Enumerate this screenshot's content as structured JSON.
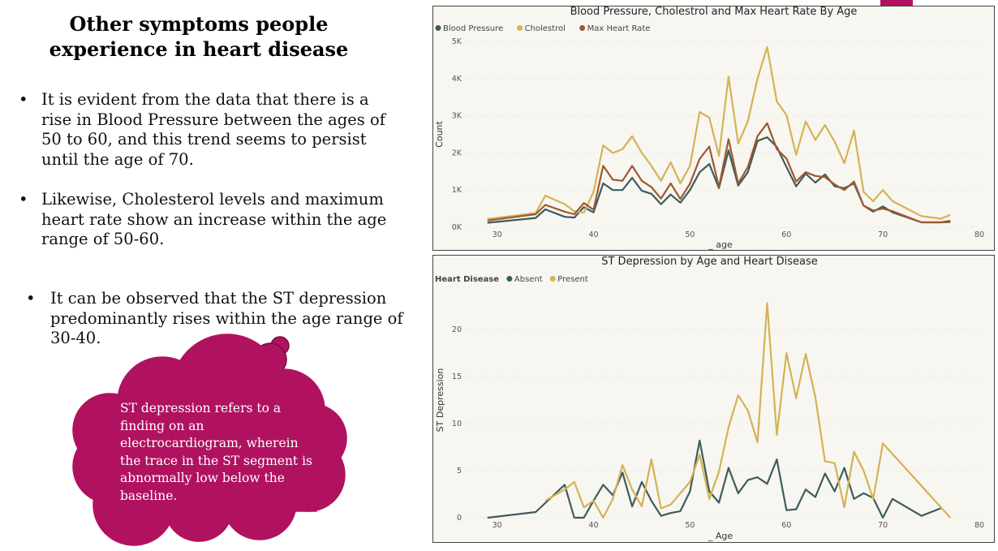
{
  "slide": {
    "title_line1": "Other symptoms people",
    "title_line2": "experience in heart disease",
    "bullet_char": "•",
    "bullets": [
      "It is evident from the data that there is a rise in Blood Pressure between the ages of 50 to 60, and this trend seems to persist until the age of 70.",
      "Likewise, Cholesterol levels and maximum heart rate show an increase within the age range of 50-60.",
      "It can be observed that the ST depression predominantly rises within the age range of 30-40."
    ],
    "callout": "ST depression refers to a finding on an electrocardiogram, wherein the trace in the ST segment is abnormally low below the baseline."
  },
  "colors": {
    "cloud_fill": "#b01260",
    "cloud_edge": "#7a0a42",
    "series_blue": "#3d5c5c",
    "series_gold": "#d4b254",
    "series_brown": "#a0582f",
    "chart_bg": "#f7f6f1"
  },
  "chart_data": [
    {
      "type": "line",
      "title": "Blood Pressure, Cholestrol and Max Heart Rate By Age",
      "xlabel": "_ age",
      "ylabel": "Count",
      "xlim": [
        27,
        80
      ],
      "ylim": [
        0,
        5000
      ],
      "xticks": [
        30,
        40,
        50,
        60,
        70,
        80
      ],
      "yticks": [
        0,
        1000,
        2000,
        3000,
        4000,
        5000
      ],
      "ytick_labels": [
        "0K",
        "1K",
        "2K",
        "3K",
        "4K",
        "5K"
      ],
      "legend_position": "top-left",
      "x": [
        29,
        34,
        35,
        37,
        38,
        39,
        40,
        41,
        42,
        43,
        44,
        45,
        46,
        47,
        48,
        49,
        50,
        51,
        52,
        53,
        54,
        55,
        56,
        57,
        58,
        59,
        60,
        61,
        62,
        63,
        64,
        65,
        66,
        67,
        68,
        69,
        70,
        71,
        74,
        76,
        77
      ],
      "series": [
        {
          "name": "Blood Pressure",
          "color": "#3d5c5c",
          "values": [
            120,
            250,
            480,
            280,
            260,
            540,
            400,
            1180,
            1000,
            1000,
            1330,
            980,
            900,
            620,
            880,
            660,
            1000,
            1480,
            1700,
            1050,
            2070,
            1120,
            1480,
            2320,
            2420,
            2160,
            1620,
            1100,
            1440,
            1200,
            1420,
            1100,
            1050,
            1180,
            580,
            420,
            560,
            400,
            130,
            130,
            170
          ]
        },
        {
          "name": "Cholestrol",
          "color": "#d4b254",
          "values": [
            220,
            380,
            850,
            620,
            430,
            390,
            950,
            2200,
            2000,
            2100,
            2450,
            2000,
            1650,
            1250,
            1750,
            1180,
            1650,
            3100,
            2950,
            1920,
            4050,
            2250,
            2850,
            4000,
            4850,
            3380,
            3020,
            1950,
            2850,
            2350,
            2750,
            2300,
            1720,
            2600,
            950,
            700,
            1000,
            700,
            300,
            230,
            330
          ]
        },
        {
          "name": "Max Heart Rate",
          "color": "#a0582f",
          "values": [
            180,
            350,
            600,
            420,
            350,
            650,
            470,
            1650,
            1280,
            1250,
            1650,
            1250,
            1080,
            770,
            1180,
            760,
            1170,
            1840,
            2170,
            1080,
            2370,
            1180,
            1620,
            2450,
            2800,
            2100,
            1850,
            1230,
            1480,
            1380,
            1350,
            1150,
            1000,
            1230,
            580,
            450,
            500,
            430,
            130,
            130,
            140
          ]
        }
      ]
    },
    {
      "type": "line",
      "title": "ST Depression by Age and Heart Disease",
      "xlabel": "_ Age",
      "ylabel": "ST Depression",
      "xlim": [
        27,
        80
      ],
      "ylim": [
        0,
        25
      ],
      "xticks": [
        30,
        40,
        50,
        60,
        70,
        80
      ],
      "yticks": [
        0,
        5,
        10,
        15,
        20
      ],
      "legend_title": "Heart Disease",
      "legend_position": "top-left",
      "series": [
        {
          "name": "Absent",
          "color": "#3d5c5c",
          "x": [
            29,
            34,
            37,
            38,
            39,
            40,
            41,
            42,
            43,
            44,
            45,
            46,
            47,
            48,
            49,
            50,
            51,
            52,
            53,
            54,
            55,
            56,
            57,
            58,
            59,
            60,
            61,
            62,
            63,
            64,
            65,
            66,
            67,
            68,
            69,
            70,
            71,
            74,
            76
          ],
          "values": [
            0,
            0.6,
            3.5,
            0,
            0,
            1.8,
            3.5,
            2.4,
            4.8,
            1.2,
            3.8,
            1.8,
            0.2,
            0.5,
            0.7,
            2.8,
            8.2,
            2.8,
            1.6,
            5.3,
            2.6,
            4,
            4.3,
            3.6,
            6.2,
            0.8,
            0.9,
            3,
            2.2,
            4.7,
            2.8,
            5.3,
            2,
            2.6,
            2.1,
            0,
            2,
            0.2,
            1
          ]
        },
        {
          "name": "Present",
          "color": "#d4b254",
          "x": [
            35,
            37,
            38,
            39,
            40,
            41,
            42,
            43,
            44,
            45,
            46,
            47,
            48,
            49,
            50,
            51,
            52,
            53,
            54,
            55,
            56,
            57,
            58,
            59,
            60,
            61,
            62,
            63,
            64,
            65,
            66,
            67,
            68,
            69,
            70,
            77
          ],
          "values": [
            1.8,
            3,
            3.8,
            1.1,
            1.8,
            0,
            2,
            5.6,
            3,
            1.2,
            6.2,
            1,
            1.4,
            2.6,
            3.8,
            6.7,
            2,
            4.9,
            9.6,
            13,
            11.4,
            8,
            22.8,
            8.8,
            17.5,
            12.7,
            17.4,
            12.8,
            6,
            5.8,
            1.1,
            7,
            5,
            2,
            7.9,
            0
          ]
        }
      ]
    }
  ]
}
